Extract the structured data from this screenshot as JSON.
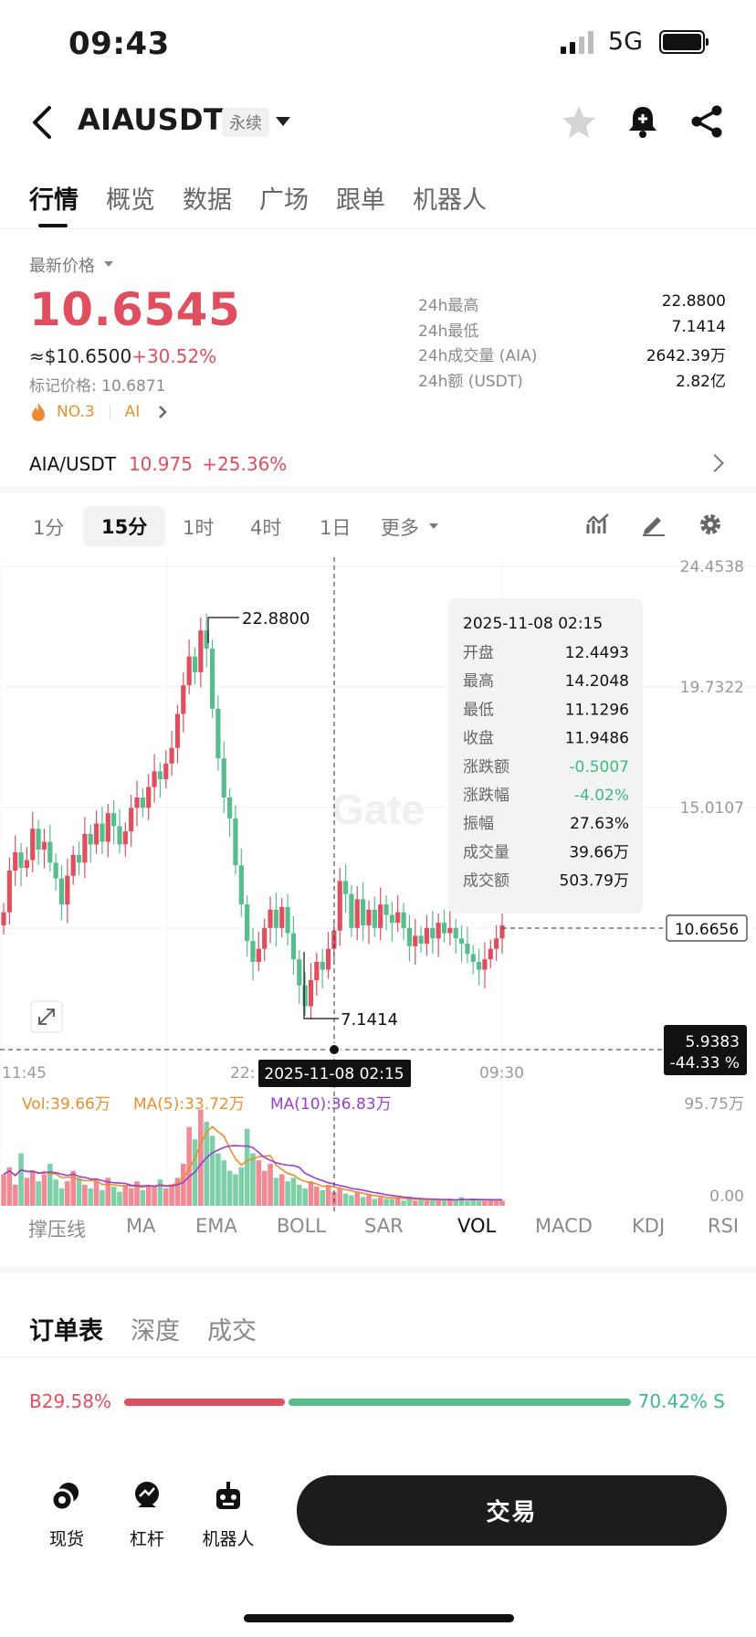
{
  "status": {
    "time": "09:43",
    "network": "5G"
  },
  "header": {
    "symbol": "AIAUSDT",
    "contract_tag": "永续"
  },
  "tabs": [
    "行情",
    "概览",
    "数据",
    "广场",
    "跟单",
    "机器人"
  ],
  "price": {
    "latest_label": "最新价格",
    "last": "10.6545",
    "usd_value": "≈$10.6500",
    "change_pct": "+30.52%",
    "mark_price": "标记价格: 10.6871",
    "rank": "NO.3",
    "category": "AI"
  },
  "stats": [
    {
      "label": "24h最高",
      "value": "22.8800"
    },
    {
      "label": "24h最低",
      "value": "7.1414"
    },
    {
      "label": "24h成交量 (AIA)",
      "value": "2642.39万"
    },
    {
      "label": "24h额 (USDT)",
      "value": "2.82亿"
    }
  ],
  "spot": {
    "pair": "AIA/USDT",
    "price": "10.975",
    "change": "+25.36%"
  },
  "intervals": {
    "items": [
      "1分",
      "15分",
      "1时",
      "4时",
      "1日",
      "更多"
    ],
    "selected": "15分"
  },
  "chart_data": {
    "type": "candlestick",
    "interval": "15分",
    "y_axis_ticks": [
      "24.4538",
      "19.7322",
      "15.0107"
    ],
    "x_axis_ticks": [
      "11:45",
      "22:",
      "09:30"
    ],
    "high_marker": "22.8800",
    "low_marker": "7.1414",
    "last_price_label": "10.6656",
    "crosshair": {
      "price": "5.9383",
      "change": "-44.33 %",
      "time": "2025-11-08 02:15"
    },
    "tooltip": {
      "datetime": "2025-11-08 02:15",
      "rows": [
        {
          "label": "开盘",
          "value": "12.4493"
        },
        {
          "label": "最高",
          "value": "14.2048"
        },
        {
          "label": "最低",
          "value": "11.1296"
        },
        {
          "label": "收盘",
          "value": "11.9486"
        },
        {
          "label": "涨跌额",
          "value": "-0.5007"
        },
        {
          "label": "涨跌幅",
          "value": "-4.02%"
        },
        {
          "label": "振幅",
          "value": "27.63%"
        },
        {
          "label": "成交量",
          "value": "39.66万"
        },
        {
          "label": "成交额",
          "value": "503.79万"
        }
      ]
    },
    "watermark": "Gate",
    "volume": {
      "vol": "Vol:39.66万",
      "ma5": "MA(5):33.72万",
      "ma10": "MA(10):36.83万",
      "max": "95.75万",
      "min": "0.00"
    },
    "candles_close": [
      11.2,
      12.8,
      13.5,
      12.9,
      13.2,
      14.4,
      13.6,
      13.9,
      13.1,
      12.5,
      11.5,
      12.6,
      13.4,
      13.1,
      14.2,
      13.8,
      14.6,
      13.9,
      15.0,
      14.5,
      13.8,
      14.3,
      15.2,
      15.6,
      15.2,
      16.0,
      16.6,
      16.3,
      16.9,
      17.5,
      18.8,
      19.9,
      21.0,
      20.4,
      22.0,
      21.3,
      19.0,
      17.1,
      15.6,
      14.8,
      13.0,
      11.5,
      10.1,
      9.3,
      9.8,
      10.6,
      11.3,
      10.6,
      11.4,
      10.4,
      9.4,
      8.4,
      7.6,
      8.6,
      9.3,
      9.0,
      9.8,
      10.5,
      12.4,
      11.9,
      10.6,
      11.7,
      10.7,
      11.3,
      10.6,
      11.5,
      11.1,
      10.8,
      11.2,
      10.6,
      9.9,
      10.3,
      10.0,
      10.6,
      10.2,
      10.8,
      10.4,
      10.6,
      10.2,
      10.0,
      9.6,
      9.3,
      9.0,
      9.4,
      9.8,
      10.2,
      10.7
    ],
    "volume_values": [
      18,
      22,
      12,
      30,
      16,
      20,
      14,
      18,
      24,
      15,
      10,
      14,
      20,
      16,
      12,
      10,
      14,
      9,
      16,
      11,
      8,
      12,
      10,
      14,
      9,
      12,
      11,
      15,
      10,
      12,
      16,
      24,
      45,
      38,
      55,
      48,
      40,
      30,
      26,
      20,
      18,
      22,
      44,
      30,
      26,
      20,
      24,
      16,
      18,
      14,
      16,
      12,
      10,
      14,
      11,
      9,
      12,
      8,
      10,
      7,
      6,
      8,
      5,
      6,
      4,
      5,
      4,
      4,
      5,
      3,
      4,
      3,
      4,
      3,
      4,
      3,
      3,
      4,
      3,
      5,
      3,
      4,
      3,
      3,
      4,
      3,
      3
    ]
  },
  "indicators": {
    "items": [
      "撑压线",
      "MA",
      "EMA",
      "BOLL",
      "SAR",
      "VOL",
      "MACD",
      "KDJ",
      "RSI"
    ],
    "active": "VOL"
  },
  "orderbook": {
    "tabs": [
      "订单表",
      "深度",
      "成交"
    ],
    "buy_ratio": "29.58%",
    "sell_ratio": "70.42%",
    "buy_letter": "B",
    "sell_letter": "S"
  },
  "bottom_nav": {
    "items": [
      "现货",
      "杠杆",
      "机器人"
    ],
    "trade_button": "交易"
  }
}
